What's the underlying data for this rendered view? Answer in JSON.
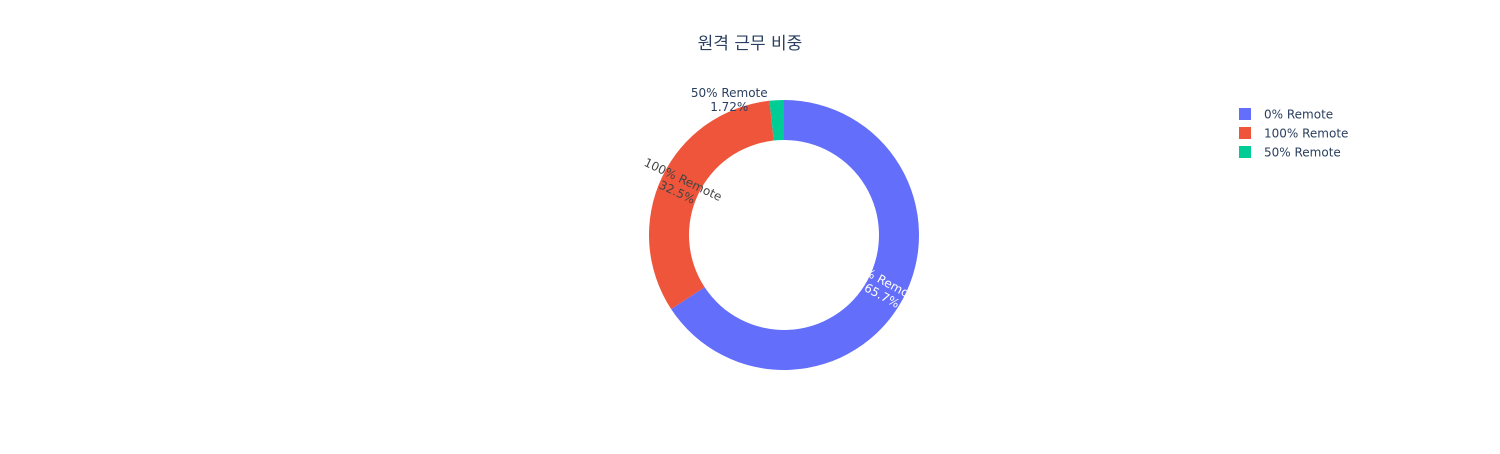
{
  "chart_data": {
    "type": "pie",
    "hole": true,
    "title": "원격 근무 비중",
    "slices": [
      {
        "label": "0% Remote",
        "value": 65.7,
        "text": "65.7%",
        "color": "#636EFA"
      },
      {
        "label": "100% Remote",
        "value": 32.5,
        "text": "32.5%",
        "color": "#EF553B"
      },
      {
        "label": "50% Remote",
        "value": 1.72,
        "text": "1.72%",
        "color": "#00CC96"
      }
    ],
    "legend": {
      "placement": "top-right",
      "entries": [
        "0% Remote",
        "100% Remote",
        "50% Remote"
      ]
    }
  }
}
